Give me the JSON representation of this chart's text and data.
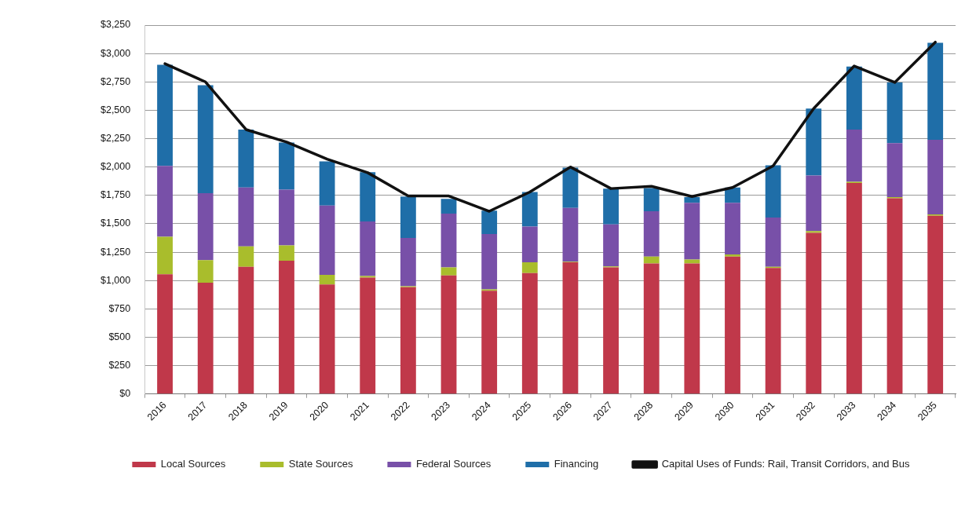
{
  "chart_data": {
    "type": "bar",
    "stacked": true,
    "categories": [
      "2016",
      "2017",
      "2018",
      "2019",
      "2020",
      "2021",
      "2022",
      "2023",
      "2024",
      "2025",
      "2026",
      "2027",
      "2028",
      "2029",
      "2030",
      "2031",
      "2032",
      "2033",
      "2034",
      "2035"
    ],
    "series": [
      {
        "name": "Local Sources",
        "color": "#c0384a",
        "values": [
          1055,
          980,
          1120,
          1175,
          965,
          1025,
          940,
          1045,
          910,
          1065,
          1160,
          1115,
          1150,
          1150,
          1210,
          1110,
          1420,
          1860,
          1725,
          1570
        ]
      },
      {
        "name": "State Sources",
        "color": "#a9bd2c",
        "values": [
          330,
          200,
          180,
          135,
          85,
          15,
          10,
          70,
          12,
          95,
          5,
          10,
          60,
          35,
          20,
          10,
          15,
          10,
          10,
          12
        ]
      },
      {
        "name": "Federal Sources",
        "color": "#7850a8",
        "values": [
          625,
          590,
          520,
          490,
          610,
          480,
          425,
          475,
          488,
          315,
          475,
          370,
          400,
          500,
          455,
          435,
          490,
          460,
          475,
          658
        ]
      },
      {
        "name": "Financing",
        "color": "#1f6ea8",
        "values": [
          890,
          950,
          510,
          415,
          390,
          435,
          365,
          130,
          205,
          305,
          355,
          315,
          205,
          50,
          135,
          460,
          590,
          555,
          535,
          855
        ]
      },
      {
        "name": "Capital Uses of Funds: Rail, Transit Corridors, and Bus",
        "type": "line",
        "color": "#111111",
        "values": [
          2910,
          2750,
          2330,
          2220,
          2070,
          1950,
          1745,
          1745,
          1610,
          1780,
          2000,
          1810,
          1830,
          1740,
          1820,
          2010,
          2515,
          2890,
          2745,
          3100
        ]
      }
    ],
    "ylim": [
      0,
      3250
    ],
    "yticks": [
      {
        "value": 0,
        "label": "$0"
      },
      {
        "value": 250,
        "label": "$250"
      },
      {
        "value": 500,
        "label": "$500"
      },
      {
        "value": 750,
        "label": "$750"
      },
      {
        "value": 1000,
        "label": "$1,000"
      },
      {
        "value": 1250,
        "label": "$1,250"
      },
      {
        "value": 1500,
        "label": "$1,500"
      },
      {
        "value": 1750,
        "label": "$1,750"
      },
      {
        "value": 2000,
        "label": "$2,000"
      },
      {
        "value": 2250,
        "label": "$2,250"
      },
      {
        "value": 2500,
        "label": "$2,500"
      },
      {
        "value": 2750,
        "label": "$2,750"
      },
      {
        "value": 3000,
        "label": "$3,000"
      },
      {
        "value": 3250,
        "label": "$3,250"
      }
    ],
    "grid": "y",
    "legend": "bottom",
    "marker": "none",
    "line_style": "solid"
  }
}
